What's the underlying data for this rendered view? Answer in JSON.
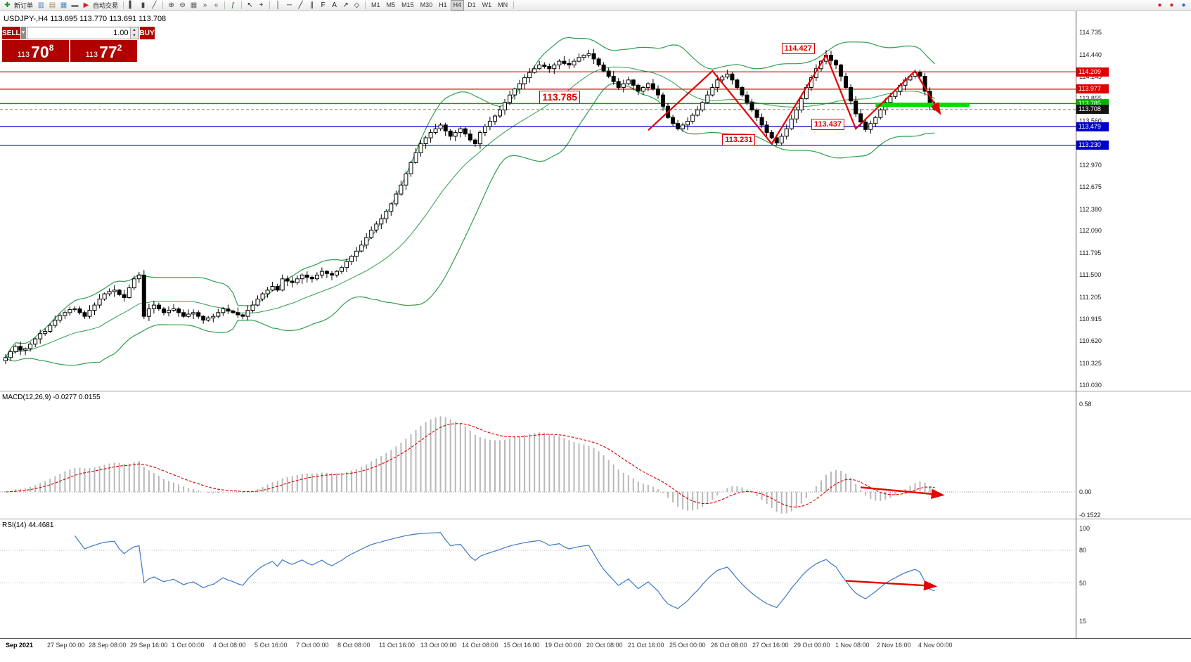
{
  "window": {
    "quote_line": "USDJPY-,H4 113.695 113.770 113.691 113.708"
  },
  "toolbar": {
    "items": [
      {
        "t": "icon",
        "name": "new-order-icon",
        "g": "✚",
        "c": "#149414"
      },
      {
        "t": "label",
        "name": "new-order-label",
        "text": "新订单"
      },
      {
        "t": "icon",
        "name": "chart-window-icon",
        "g": "▥",
        "c": "#5a7fb5"
      },
      {
        "t": "icon",
        "name": "profile-icon",
        "g": "▤",
        "c": "#b5895a"
      },
      {
        "t": "icon",
        "name": "market-watch-icon",
        "g": "▦",
        "c": "#4a8ab5"
      },
      {
        "t": "icon",
        "name": "terminal-icon",
        "g": "▬",
        "c": "#777777"
      },
      {
        "t": "icon",
        "name": "autotrade-icon",
        "g": "▶",
        "c": "#cc2222"
      },
      {
        "t": "label",
        "name": "autotrade-label",
        "text": "自动交易"
      },
      {
        "t": "sep"
      },
      {
        "t": "icon",
        "name": "bar-chart-icon",
        "g": "▍",
        "c": "#444444"
      },
      {
        "t": "icon",
        "name": "candle-chart-icon",
        "g": "▮",
        "c": "#444444"
      },
      {
        "t": "icon",
        "name": "line-chart-icon",
        "g": "╱",
        "c": "#444444"
      },
      {
        "t": "sep"
      },
      {
        "t": "icon",
        "name": "zoom-in-icon",
        "g": "⊕",
        "c": "#444444"
      },
      {
        "t": "icon",
        "name": "zoom-out-icon",
        "g": "⊖",
        "c": "#444444"
      },
      {
        "t": "icon",
        "name": "tile-windows-icon",
        "g": "▦",
        "c": "#666666"
      },
      {
        "t": "icon",
        "name": "auto-scroll-icon",
        "g": "»",
        "c": "#555555"
      },
      {
        "t": "icon",
        "name": "chart-shift-icon",
        "g": "«",
        "c": "#555555"
      },
      {
        "t": "sep"
      },
      {
        "t": "icon",
        "name": "indicators-icon",
        "g": "ƒ",
        "c": "#1f7a1f"
      },
      {
        "t": "sep"
      },
      {
        "t": "icon",
        "name": "cursor-icon",
        "g": "↖",
        "c": "#222222"
      },
      {
        "t": "icon",
        "name": "crosshair-icon",
        "g": "+",
        "c": "#222222"
      },
      {
        "t": "sep"
      },
      {
        "t": "icon",
        "name": "vertical-line-icon",
        "g": "│",
        "c": "#222222"
      },
      {
        "t": "icon",
        "name": "horizontal-line-icon",
        "g": "─",
        "c": "#222222"
      },
      {
        "t": "icon",
        "name": "trendline-icon",
        "g": "╱",
        "c": "#222222"
      },
      {
        "t": "icon",
        "name": "channel-icon",
        "g": "∥",
        "c": "#222222"
      },
      {
        "t": "icon",
        "name": "fibonacci-icon",
        "g": "F",
        "c": "#222222"
      },
      {
        "t": "icon",
        "name": "text-icon",
        "g": "A",
        "c": "#222222"
      },
      {
        "t": "icon",
        "name": "arrows-tool-icon",
        "g": "↗",
        "c": "#222222"
      },
      {
        "t": "icon",
        "name": "shapes-icon",
        "g": "◇",
        "c": "#222222"
      },
      {
        "t": "sep"
      },
      {
        "t": "tf",
        "text": "M1"
      },
      {
        "t": "tf",
        "text": "M5"
      },
      {
        "t": "tf",
        "text": "M15"
      },
      {
        "t": "tf",
        "text": "M30"
      },
      {
        "t": "tf",
        "text": "H1"
      },
      {
        "t": "tf",
        "text": "H4",
        "active": true
      },
      {
        "t": "tf",
        "text": "D1"
      },
      {
        "t": "tf",
        "text": "W1"
      },
      {
        "t": "tf",
        "text": "MN"
      },
      {
        "t": "sep"
      }
    ],
    "right_items": [
      {
        "t": "icon",
        "name": "alert-icon",
        "g": "●",
        "c": "#cc2222"
      },
      {
        "t": "icon",
        "name": "news-icon",
        "g": "●",
        "c": "#cc2222"
      },
      {
        "t": "icon",
        "name": "community-icon",
        "g": "●",
        "c": "#3366cc"
      }
    ]
  },
  "trade_panel": {
    "sell_label": "SELL",
    "buy_label": "BUY",
    "volume": "1.00",
    "sell_price": {
      "prefix": "113",
      "big": "70",
      "sup": "8"
    },
    "buy_price": {
      "prefix": "113",
      "big": "77",
      "sup": "2"
    }
  },
  "chart_data": {
    "type": "candlestick",
    "symbol": "USDJPY-",
    "period": "H4",
    "ohlc_display": {
      "open": "113.695",
      "high": "113.770",
      "low": "113.691",
      "close": "113.708"
    },
    "ylim": [
      110.03,
      114.735
    ],
    "y_tick_labels": [
      "114.735",
      "114.440",
      "114.145",
      "113.855",
      "113.560",
      "113.265",
      "112.970",
      "112.675",
      "112.380",
      "112.090",
      "111.795",
      "111.500",
      "111.205",
      "110.915",
      "110.620",
      "110.325",
      "110.030"
    ],
    "x_tick_labels": [
      "Sep 2021",
      "27 Sep 00:00",
      "28 Sep 08:00",
      "29 Sep 16:00",
      "1 Oct 00:00",
      "4 Oct 08:00",
      "5 Oct 16:00",
      "7 Oct 00:00",
      "8 Oct 08:00",
      "11 Oct 16:00",
      "13 Oct 00:00",
      "14 Oct 08:00",
      "15 Oct 16:00",
      "19 Oct 00:00",
      "20 Oct 08:00",
      "21 Oct 16:00",
      "25 Oct 00:00",
      "26 Oct 08:00",
      "27 Oct 16:00",
      "29 Oct 00:00",
      "1 Nov 08:00",
      "2 Nov 16:00",
      "4 Nov 00:00"
    ],
    "closes": [
      110.4,
      110.48,
      110.55,
      110.5,
      110.52,
      110.58,
      110.65,
      110.72,
      110.75,
      110.83,
      110.9,
      110.96,
      111.0,
      111.04,
      111.05,
      111.0,
      110.95,
      111.03,
      111.1,
      111.18,
      111.25,
      111.28,
      111.3,
      111.24,
      111.2,
      111.33,
      111.45,
      111.5,
      110.95,
      111.05,
      111.1,
      111.05,
      111.0,
      111.03,
      111.05,
      111.0,
      110.95,
      110.98,
      111.0,
      110.95,
      110.9,
      110.93,
      110.95,
      111.0,
      111.05,
      111.02,
      111.0,
      110.97,
      110.95,
      111.03,
      111.1,
      111.18,
      111.25,
      111.3,
      111.35,
      111.3,
      111.45,
      111.42,
      111.4,
      111.45,
      111.5,
      111.47,
      111.45,
      111.5,
      111.55,
      111.52,
      111.5,
      111.55,
      111.6,
      111.68,
      111.75,
      111.82,
      111.9,
      112.0,
      112.1,
      112.18,
      112.25,
      112.35,
      112.45,
      112.58,
      112.7,
      112.85,
      113.0,
      113.13,
      113.25,
      113.33,
      113.4,
      113.45,
      113.5,
      113.42,
      113.35,
      113.4,
      113.45,
      113.38,
      113.3,
      113.25,
      113.4,
      113.48,
      113.55,
      113.62,
      113.7,
      113.8,
      113.9,
      113.98,
      114.05,
      114.13,
      114.2,
      114.25,
      114.3,
      114.28,
      114.25,
      114.3,
      114.35,
      114.32,
      114.3,
      114.35,
      114.4,
      114.43,
      114.45,
      114.38,
      114.3,
      114.22,
      114.15,
      114.08,
      114.0,
      114.05,
      114.1,
      114.03,
      113.95,
      114.0,
      114.05,
      113.98,
      113.9,
      113.75,
      113.6,
      113.52,
      113.45,
      113.5,
      113.55,
      113.63,
      113.7,
      113.8,
      113.9,
      114.0,
      114.1,
      114.14,
      114.18,
      114.1,
      114.0,
      113.9,
      113.8,
      113.7,
      113.6,
      113.5,
      113.4,
      113.33,
      113.26,
      113.35,
      113.45,
      113.58,
      113.7,
      113.85,
      114.0,
      114.13,
      114.25,
      114.35,
      114.43,
      114.36,
      114.3,
      114.15,
      114.0,
      113.82,
      113.65,
      113.54,
      113.44,
      113.52,
      113.6,
      113.7,
      113.8,
      113.88,
      113.95,
      114.03,
      114.1,
      114.15,
      114.2,
      114.15,
      113.95,
      113.75,
      113.71
    ],
    "bollinger": {
      "period": 20,
      "deviation": 2
    },
    "levels": [
      {
        "price": 114.209,
        "color": "#e00000",
        "width": 1.2
      },
      {
        "price": 113.977,
        "color": "#e00000",
        "width": 1.2
      },
      {
        "price": 113.785,
        "color": "#00a000",
        "width": 1.5
      },
      {
        "price": 113.479,
        "color": "#0000cc",
        "width": 1.2
      },
      {
        "price": 113.23,
        "color": "#0000cc",
        "width": 1.2
      }
    ],
    "current_price": 113.708
  },
  "price_axis": {
    "badges": [
      {
        "text": "114.209",
        "bg": "#e00000",
        "price": 114.209
      },
      {
        "text": "113.977",
        "bg": "#e00000",
        "price": 113.977
      },
      {
        "text": "113.785",
        "bg": "#00b400",
        "price": 113.785
      },
      {
        "text": "113.708",
        "bg": "#141414",
        "price": 113.708
      },
      {
        "text": "113.479",
        "bg": "#0000cc",
        "price": 113.479
      },
      {
        "text": "113.230",
        "bg": "#0000cc",
        "price": 113.23
      }
    ]
  },
  "annotations": {
    "zigzag": [
      [
        130,
        113.43
      ],
      [
        143,
        114.22
      ],
      [
        155,
        113.25
      ],
      [
        166,
        114.43
      ],
      [
        172,
        113.45
      ],
      [
        184,
        114.22
      ],
      [
        189,
        113.66
      ]
    ],
    "labels": [
      {
        "text": "114.427",
        "i": 157,
        "p": 114.52,
        "size": "normal"
      },
      {
        "text": "113.785",
        "i": 108,
        "p": 113.88,
        "size": "large"
      },
      {
        "text": "113.437",
        "i": 163,
        "p": 113.51,
        "size": "normal"
      },
      {
        "text": "113.231",
        "i": 145,
        "p": 113.3,
        "size": "normal"
      }
    ],
    "highlight_bar": {
      "i1": 176,
      "i2": 195,
      "price": 113.77,
      "color": "#00dd00"
    },
    "macd_arrow": {
      "from": [
        173,
        0.03
      ],
      "to": [
        189.5,
        -0.02
      ]
    },
    "rsi_arrow": {
      "from": [
        170,
        52
      ],
      "to": [
        188,
        47
      ]
    }
  },
  "macd": {
    "label": "MACD(12,26,9) -0.0277 0.0155",
    "params": [
      12,
      26,
      9
    ],
    "values": [
      "-0.0277",
      "0.0155"
    ],
    "axis": [
      {
        "t": "0.58",
        "v": 0.58
      },
      {
        "t": "0.00",
        "v": 0
      },
      {
        "t": "-0.1522",
        "v": -0.1522
      }
    ]
  },
  "rsi": {
    "label": "RSI(14) 44.4681",
    "period": 14,
    "value": "44.4681",
    "axis": [
      {
        "t": "100",
        "v": 100
      },
      {
        "t": "80",
        "v": 80
      },
      {
        "t": "50",
        "v": 50
      },
      {
        "t": "15",
        "v": 15
      }
    ]
  }
}
